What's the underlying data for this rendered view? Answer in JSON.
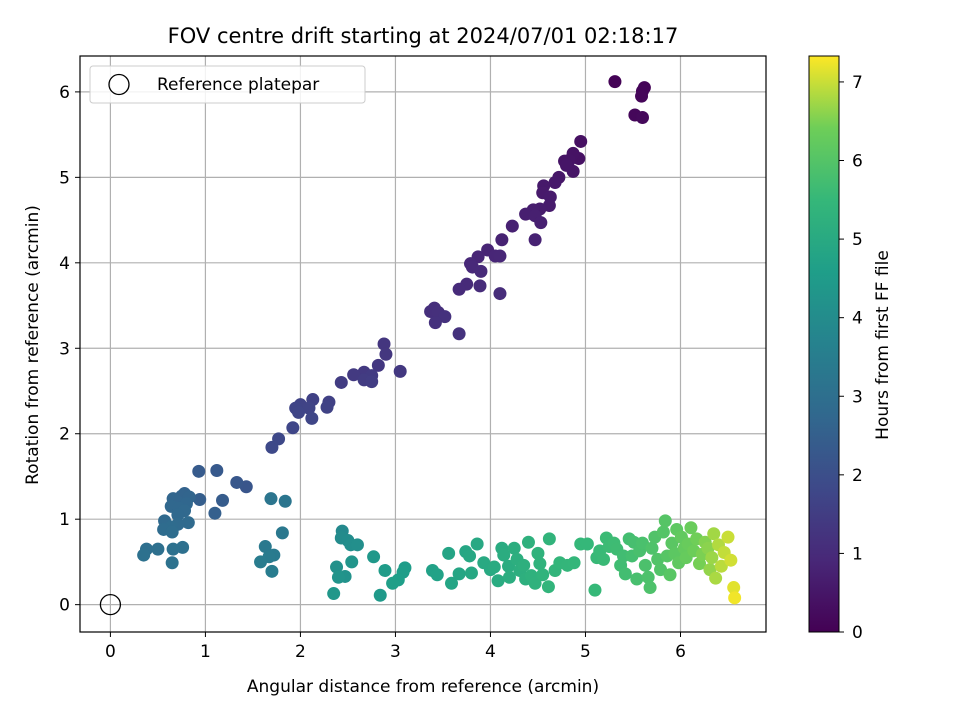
{
  "chart_data": {
    "type": "scatter",
    "title": "FOV centre drift starting at 2024/07/01 02:18:17",
    "xlabel": "Angular distance from reference (arcmin)",
    "ylabel": "Rotation from reference (arcmin)",
    "colorbar_label": "Hours from first FF file",
    "xlim": [
      -0.32,
      6.9
    ],
    "ylim": [
      -0.32,
      6.42
    ],
    "xticks": [
      0,
      1,
      2,
      3,
      4,
      5,
      6
    ],
    "yticks": [
      0,
      1,
      2,
      3,
      4,
      5,
      6
    ],
    "colorbar_range": [
      0,
      7.33
    ],
    "colorbar_ticks": [
      0,
      1,
      2,
      3,
      4,
      5,
      6,
      7
    ],
    "colormap": "viridis",
    "grid": true,
    "legend_position": "top-left",
    "legend": [
      {
        "label": "Reference platepar",
        "marker": "open-circle",
        "x": 0,
        "y": 0
      }
    ],
    "series": [
      {
        "points": [
          [
            5.31,
            6.12,
            0.05
          ],
          [
            5.62,
            6.05,
            0.08
          ],
          [
            5.6,
            6.01,
            0.1
          ],
          [
            5.59,
            5.95,
            0.12
          ],
          [
            5.52,
            5.73,
            0.15
          ],
          [
            5.6,
            5.7,
            0.18
          ],
          [
            4.95,
            5.42,
            0.35
          ],
          [
            4.93,
            5.22,
            0.38
          ],
          [
            4.87,
            5.28,
            0.4
          ],
          [
            4.83,
            5.2,
            0.42
          ],
          [
            4.78,
            5.19,
            0.44
          ],
          [
            4.87,
            5.07,
            0.46
          ],
          [
            4.8,
            5.14,
            0.48
          ],
          [
            4.72,
            5.0,
            0.52
          ],
          [
            4.68,
            4.94,
            0.55
          ],
          [
            4.56,
            4.9,
            0.57
          ],
          [
            4.55,
            4.82,
            0.58
          ],
          [
            4.63,
            4.77,
            0.6
          ],
          [
            4.62,
            4.67,
            0.62
          ],
          [
            4.52,
            4.63,
            0.64
          ],
          [
            4.45,
            4.62,
            0.66
          ],
          [
            4.42,
            4.58,
            0.68
          ],
          [
            4.37,
            4.57,
            0.7
          ],
          [
            4.47,
            4.55,
            0.72
          ],
          [
            4.53,
            4.47,
            0.74
          ],
          [
            4.23,
            4.43,
            0.76
          ],
          [
            4.47,
            4.27,
            0.78
          ],
          [
            4.12,
            4.27,
            0.8
          ],
          [
            3.97,
            4.15,
            0.84
          ],
          [
            3.87,
            4.07,
            0.86
          ],
          [
            4.05,
            4.08,
            0.88
          ],
          [
            4.1,
            4.08,
            0.9
          ],
          [
            3.79,
            3.99,
            0.93
          ],
          [
            3.81,
            3.95,
            0.95
          ],
          [
            3.9,
            3.9,
            0.97
          ],
          [
            3.75,
            3.75,
            0.99
          ],
          [
            3.67,
            3.69,
            1.01
          ],
          [
            3.89,
            3.73,
            1.03
          ],
          [
            4.1,
            3.64,
            1.05
          ],
          [
            3.41,
            3.47,
            1.1
          ],
          [
            3.37,
            3.43,
            1.12
          ],
          [
            3.45,
            3.42,
            1.14
          ],
          [
            3.52,
            3.37,
            1.16
          ],
          [
            3.42,
            3.3,
            1.18
          ],
          [
            3.67,
            3.17,
            1.2
          ],
          [
            2.88,
            3.05,
            1.3
          ],
          [
            2.9,
            2.93,
            1.32
          ],
          [
            2.82,
            2.8,
            1.34
          ],
          [
            3.05,
            2.73,
            1.36
          ],
          [
            2.67,
            2.72,
            1.4
          ],
          [
            2.56,
            2.69,
            1.42
          ],
          [
            2.75,
            2.68,
            1.44
          ],
          [
            2.67,
            2.63,
            1.46
          ],
          [
            2.43,
            2.6,
            1.48
          ],
          [
            2.75,
            2.61,
            1.5
          ],
          [
            2.3,
            2.37,
            1.6
          ],
          [
            2.13,
            2.4,
            1.62
          ],
          [
            2.28,
            2.31,
            1.64
          ],
          [
            2.0,
            2.34,
            1.66
          ],
          [
            2.09,
            2.3,
            1.68
          ],
          [
            1.95,
            2.3,
            1.7
          ],
          [
            1.98,
            2.25,
            1.72
          ],
          [
            2.12,
            2.18,
            1.74
          ],
          [
            1.92,
            2.07,
            1.76
          ],
          [
            1.77,
            1.94,
            1.8
          ],
          [
            1.7,
            1.84,
            1.82
          ],
          [
            1.43,
            1.38,
            2.2
          ],
          [
            1.33,
            1.43,
            2.25
          ],
          [
            1.12,
            1.57,
            2.3
          ],
          [
            0.93,
            1.56,
            2.35
          ],
          [
            1.18,
            1.22,
            2.4
          ],
          [
            0.94,
            1.23,
            2.45
          ],
          [
            1.1,
            1.07,
            2.5
          ],
          [
            0.78,
            1.3,
            2.6
          ],
          [
            0.75,
            1.27,
            2.62
          ],
          [
            0.83,
            1.26,
            2.65
          ],
          [
            0.66,
            1.24,
            2.68
          ],
          [
            0.71,
            1.2,
            2.7
          ],
          [
            0.8,
            1.18,
            2.72
          ],
          [
            0.64,
            1.15,
            2.74
          ],
          [
            0.72,
            1.13,
            2.76
          ],
          [
            0.78,
            1.1,
            2.78
          ],
          [
            0.71,
            1.05,
            2.8
          ],
          [
            0.57,
            0.98,
            2.82
          ],
          [
            0.82,
            0.96,
            2.84
          ],
          [
            0.71,
            0.94,
            2.86
          ],
          [
            0.64,
            0.91,
            2.88
          ],
          [
            0.56,
            0.88,
            2.9
          ],
          [
            0.65,
            0.85,
            2.92
          ],
          [
            0.38,
            0.65,
            3.0
          ],
          [
            0.5,
            0.65,
            3.02
          ],
          [
            0.76,
            0.67,
            3.04
          ],
          [
            0.66,
            0.65,
            3.06
          ],
          [
            0.35,
            0.58,
            3.08
          ],
          [
            0.65,
            0.49,
            3.1
          ],
          [
            1.69,
            1.24,
            3.2
          ],
          [
            1.84,
            1.21,
            3.22
          ],
          [
            1.81,
            0.84,
            3.3
          ],
          [
            1.63,
            0.68,
            3.35
          ],
          [
            1.72,
            0.58,
            3.4
          ],
          [
            1.67,
            0.56,
            3.42
          ],
          [
            1.58,
            0.5,
            3.44
          ],
          [
            1.7,
            0.39,
            3.46
          ],
          [
            2.44,
            0.86,
            3.9
          ],
          [
            2.43,
            0.78,
            3.95
          ],
          [
            2.5,
            0.75,
            4.0
          ],
          [
            2.53,
            0.7,
            4.05
          ],
          [
            2.6,
            0.7,
            4.1
          ],
          [
            2.38,
            0.44,
            4.15
          ],
          [
            2.47,
            0.33,
            4.2
          ],
          [
            2.4,
            0.32,
            4.25
          ],
          [
            2.54,
            0.5,
            4.3
          ],
          [
            2.35,
            0.13,
            4.35
          ],
          [
            2.77,
            0.56,
            4.4
          ],
          [
            2.84,
            0.11,
            4.45
          ],
          [
            2.89,
            0.4,
            4.5
          ],
          [
            3.1,
            0.43,
            4.55
          ],
          [
            3.08,
            0.38,
            4.58
          ],
          [
            3.03,
            0.29,
            4.6
          ],
          [
            2.97,
            0.25,
            4.62
          ],
          [
            3.39,
            0.4,
            4.7
          ],
          [
            3.44,
            0.35,
            4.72
          ],
          [
            3.56,
            0.6,
            4.8
          ],
          [
            3.59,
            0.25,
            4.82
          ],
          [
            3.67,
            0.36,
            4.85
          ],
          [
            3.74,
            0.62,
            4.88
          ],
          [
            3.78,
            0.57,
            4.9
          ],
          [
            3.8,
            0.37,
            4.92
          ],
          [
            3.86,
            0.71,
            4.95
          ],
          [
            3.93,
            0.49,
            4.98
          ],
          [
            4.0,
            0.41,
            5.0
          ],
          [
            4.04,
            0.44,
            5.02
          ],
          [
            4.08,
            0.28,
            5.04
          ],
          [
            4.12,
            0.66,
            5.06
          ],
          [
            4.14,
            0.58,
            5.08
          ],
          [
            4.19,
            0.45,
            5.1
          ],
          [
            4.2,
            0.32,
            5.12
          ],
          [
            4.25,
            0.66,
            5.14
          ],
          [
            4.28,
            0.53,
            5.16
          ],
          [
            4.31,
            0.4,
            5.18
          ],
          [
            4.35,
            0.46,
            5.2
          ],
          [
            4.37,
            0.3,
            5.22
          ],
          [
            4.4,
            0.73,
            5.24
          ],
          [
            4.43,
            0.34,
            5.26
          ],
          [
            4.47,
            0.25,
            5.28
          ],
          [
            4.5,
            0.6,
            5.3
          ],
          [
            4.52,
            0.48,
            5.32
          ],
          [
            4.55,
            0.35,
            5.34
          ],
          [
            4.62,
            0.77,
            5.36
          ],
          [
            4.61,
            0.21,
            5.38
          ],
          [
            4.68,
            0.4,
            5.4
          ],
          [
            4.73,
            0.49,
            5.42
          ],
          [
            4.81,
            0.46,
            5.44
          ],
          [
            4.88,
            0.49,
            5.46
          ],
          [
            4.95,
            0.71,
            5.48
          ],
          [
            5.02,
            0.71,
            5.5
          ],
          [
            5.1,
            0.17,
            5.52
          ],
          [
            5.12,
            0.55,
            5.54
          ],
          [
            5.15,
            0.63,
            5.56
          ],
          [
            5.19,
            0.53,
            5.58
          ],
          [
            5.22,
            0.78,
            5.6
          ],
          [
            5.25,
            0.68,
            5.62
          ],
          [
            5.3,
            0.72,
            5.64
          ],
          [
            5.33,
            0.65,
            5.66
          ],
          [
            5.37,
            0.46,
            5.68
          ],
          [
            5.4,
            0.57,
            5.7
          ],
          [
            5.42,
            0.36,
            5.72
          ],
          [
            5.46,
            0.77,
            5.74
          ],
          [
            5.49,
            0.57,
            5.76
          ],
          [
            5.51,
            0.73,
            5.78
          ],
          [
            5.54,
            0.3,
            5.8
          ],
          [
            5.57,
            0.63,
            5.82
          ],
          [
            5.6,
            0.72,
            5.84
          ],
          [
            5.63,
            0.46,
            5.86
          ],
          [
            5.66,
            0.32,
            5.88
          ],
          [
            5.68,
            0.2,
            5.9
          ],
          [
            5.7,
            0.66,
            5.92
          ],
          [
            5.73,
            0.79,
            5.94
          ],
          [
            5.76,
            0.53,
            5.96
          ],
          [
            5.79,
            0.41,
            5.98
          ],
          [
            5.82,
            0.85,
            6.0
          ],
          [
            5.84,
            0.98,
            6.02
          ],
          [
            5.86,
            0.57,
            6.05
          ],
          [
            5.89,
            0.35,
            6.08
          ],
          [
            5.91,
            0.72,
            6.1
          ],
          [
            5.94,
            0.6,
            6.13
          ],
          [
            5.96,
            0.88,
            6.16
          ],
          [
            5.98,
            0.49,
            6.19
          ],
          [
            6.01,
            0.79,
            6.22
          ],
          [
            6.04,
            0.66,
            6.25
          ],
          [
            6.06,
            0.55,
            6.28
          ],
          [
            6.08,
            0.71,
            6.31
          ],
          [
            6.11,
            0.9,
            6.34
          ],
          [
            6.14,
            0.63,
            6.38
          ],
          [
            6.17,
            0.77,
            6.42
          ],
          [
            6.2,
            0.48,
            6.46
          ],
          [
            6.23,
            0.59,
            6.5
          ],
          [
            6.26,
            0.73,
            6.55
          ],
          [
            6.29,
            0.66,
            6.6
          ],
          [
            6.31,
            0.41,
            6.65
          ],
          [
            6.33,
            0.55,
            6.7
          ],
          [
            6.35,
            0.83,
            6.75
          ],
          [
            6.37,
            0.31,
            6.8
          ],
          [
            6.4,
            0.7,
            6.85
          ],
          [
            6.43,
            0.45,
            6.9
          ],
          [
            6.46,
            0.61,
            6.95
          ],
          [
            6.5,
            0.79,
            7.0
          ],
          [
            6.53,
            0.52,
            7.05
          ],
          [
            6.56,
            0.2,
            7.15
          ],
          [
            6.57,
            0.08,
            7.25
          ]
        ]
      }
    ]
  }
}
